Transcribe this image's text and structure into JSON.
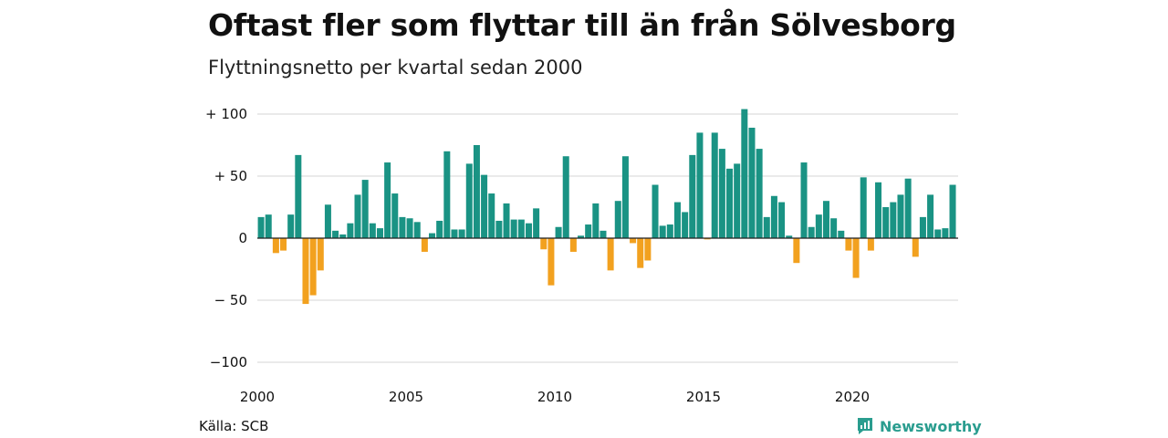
{
  "header": {
    "title": "Oftast fler som flyttar till än från Sölvesborg",
    "subtitle": "Flyttningsnetto per kvartal sedan 2000"
  },
  "footer": {
    "source": "Källa: SCB",
    "brand": "Newsworthy"
  },
  "colors": {
    "positive": "#1a9384",
    "negative": "#f2a11f",
    "grid": "#dddddd",
    "brand": "#2a9d8f"
  },
  "chart_data": {
    "type": "bar",
    "title": "Oftast fler som flyttar till än från Sölvesborg",
    "subtitle": "Flyttningsnetto per kvartal sedan 2000",
    "xlabel": "",
    "ylabel": "",
    "x_start_year": 2000,
    "periods_per_year": 4,
    "ylim": [
      -100,
      100
    ],
    "y_ticks": [
      {
        "value": 100,
        "label": "+ 100"
      },
      {
        "value": 50,
        "label": "+  50"
      },
      {
        "value": 0,
        "label": "0"
      },
      {
        "value": -50,
        "label": "− 50"
      },
      {
        "value": -100,
        "label": "−100"
      }
    ],
    "x_ticks": [
      {
        "value": 2000,
        "label": "2000"
      },
      {
        "value": 2005,
        "label": "2005"
      },
      {
        "value": 2010,
        "label": "2010"
      },
      {
        "value": 2015,
        "label": "2015"
      },
      {
        "value": 2020,
        "label": "2020"
      }
    ],
    "grid": true,
    "legend": "none",
    "values": [
      17,
      19,
      -12,
      -10,
      19,
      67,
      -53,
      -46,
      -26,
      27,
      6,
      3,
      12,
      35,
      47,
      12,
      8,
      61,
      36,
      17,
      16,
      13,
      -11,
      4,
      14,
      70,
      7,
      7,
      60,
      75,
      51,
      36,
      14,
      28,
      15,
      15,
      12,
      24,
      -9,
      -38,
      9,
      66,
      -11,
      2,
      11,
      28,
      6,
      -26,
      30,
      66,
      -4,
      -24,
      -18,
      43,
      10,
      11,
      29,
      21,
      67,
      85,
      -1,
      85,
      72,
      56,
      60,
      104,
      89,
      72,
      17,
      34,
      29,
      2,
      -20,
      61,
      9,
      19,
      30,
      16,
      6,
      -10,
      -32,
      49,
      -10,
      45,
      25,
      29,
      35,
      48,
      -15,
      17,
      35,
      7,
      8,
      43
    ]
  }
}
